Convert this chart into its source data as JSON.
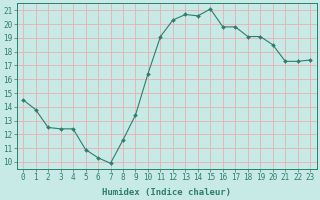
{
  "x": [
    0,
    1,
    2,
    3,
    4,
    5,
    6,
    7,
    8,
    9,
    10,
    11,
    12,
    13,
    14,
    15,
    16,
    17,
    18,
    19,
    20,
    21,
    22,
    23
  ],
  "y": [
    14.5,
    13.8,
    12.5,
    12.4,
    12.4,
    10.9,
    10.3,
    9.9,
    11.6,
    13.4,
    16.4,
    19.1,
    20.3,
    20.7,
    20.6,
    21.1,
    19.8,
    19.8,
    19.1,
    19.1,
    18.5,
    17.3,
    17.3,
    17.4
  ],
  "line_color": "#2e7d6e",
  "marker": "D",
  "marker_size": 2,
  "bg_color": "#c8eae6",
  "grid_color": "#e8b0b0",
  "xlabel": "Humidex (Indice chaleur)",
  "ylim": [
    9.5,
    21.5
  ],
  "xlim": [
    -0.5,
    23.5
  ],
  "yticks": [
    10,
    11,
    12,
    13,
    14,
    15,
    16,
    17,
    18,
    19,
    20,
    21
  ],
  "xticks": [
    0,
    1,
    2,
    3,
    4,
    5,
    6,
    7,
    8,
    9,
    10,
    11,
    12,
    13,
    14,
    15,
    16,
    17,
    18,
    19,
    20,
    21,
    22,
    23
  ],
  "xtick_labels": [
    "0",
    "1",
    "2",
    "3",
    "4",
    "5",
    "6",
    "7",
    "8",
    "9",
    "10",
    "11",
    "12",
    "13",
    "14",
    "15",
    "16",
    "17",
    "18",
    "19",
    "20",
    "21",
    "22",
    "23"
  ],
  "ytick_labels": [
    "10",
    "11",
    "12",
    "13",
    "14",
    "15",
    "16",
    "17",
    "18",
    "19",
    "20",
    "21"
  ],
  "label_fontsize": 6.5,
  "tick_fontsize": 5.5
}
